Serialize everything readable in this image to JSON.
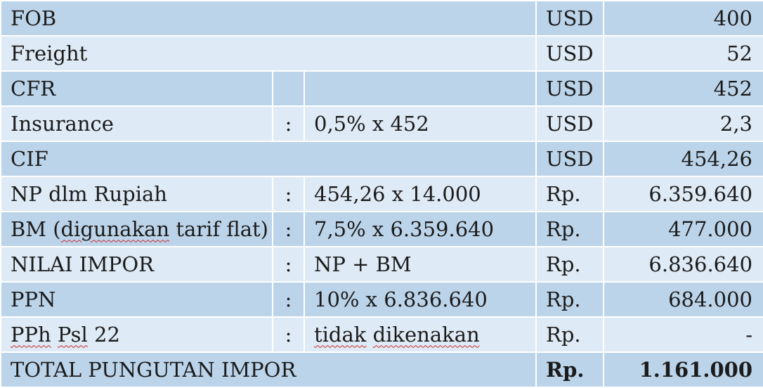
{
  "rows": [
    {
      "label": "FOB",
      "currency": "USD",
      "amount": "400"
    },
    {
      "label": "Freight",
      "currency": "USD",
      "amount": "52"
    },
    {
      "label": "CFR",
      "currency": "USD",
      "amount": "452"
    },
    {
      "label": "Insurance",
      "sep": ":",
      "formula": "0,5% x 452",
      "currency": "USD",
      "amount": "2,3"
    },
    {
      "label": "CIF",
      "currency": "USD",
      "amount": "454,26"
    },
    {
      "label": "NP dlm Rupiah",
      "sep": ":",
      "formula": "454,26 x 14.000",
      "currency": "Rp.",
      "amount": "6.359.640"
    },
    {
      "label_pre": "BM (",
      "label_word": "digunakan",
      "label_post": " tarif flat)",
      "sep": ":",
      "formula": "7,5% x 6.359.640",
      "currency": "Rp.",
      "amount": "477.000"
    },
    {
      "label": "NILAI IMPOR",
      "sep": ":",
      "formula": "NP + BM",
      "currency": "Rp.",
      "amount": "6.836.640"
    },
    {
      "label": "PPN",
      "sep": ":",
      "formula": "10% x 6.836.640",
      "currency": "Rp.",
      "amount": "684.000"
    },
    {
      "label_w1": "PPh",
      "label_w2": "Psl",
      "label_rest": " 22",
      "sep": ":",
      "formula_w1": "tidak",
      "formula_w2": "dikenakan",
      "currency": "Rp.",
      "amount": "-"
    },
    {
      "label": "TOTAL PUNGUTAN IMPOR",
      "currency": "Rp.",
      "amount": "1.161.000"
    }
  ],
  "colors": {
    "row_dark": "#bcd4ea",
    "row_light": "#deeaf5",
    "grid": "#ffffff",
    "text": "#1b1b1b",
    "spellcheck_underline": "#cc2a2a"
  }
}
